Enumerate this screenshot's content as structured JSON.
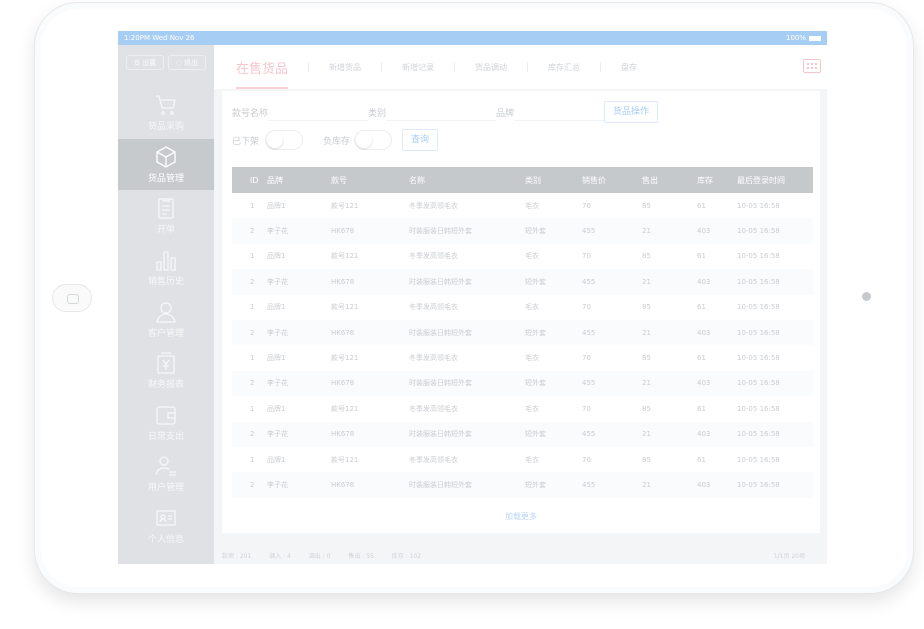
{
  "status": {
    "time": "1:20PM  Wed Nov 26",
    "battery": "100%"
  },
  "sidebar": {
    "settings_label": "设置",
    "logout_label": "退出",
    "items": [
      {
        "label": "货品采购",
        "icon": "cart-icon"
      },
      {
        "label": "货品管理",
        "icon": "box-icon"
      },
      {
        "label": "开单",
        "icon": "clipboard-icon"
      },
      {
        "label": "销售历史",
        "icon": "bar-chart-icon"
      },
      {
        "label": "客户管理",
        "icon": "customer-icon"
      },
      {
        "label": "财务报表",
        "icon": "finance-icon"
      },
      {
        "label": "日常支出",
        "icon": "wallet-icon"
      },
      {
        "label": "用户管理",
        "icon": "user-manage-icon"
      },
      {
        "label": "个人信息",
        "icon": "id-card-icon"
      }
    ]
  },
  "header": {
    "tabs": [
      "在售货品",
      "新增货品",
      "新增记录",
      "货品调动",
      "库存汇总",
      "盘存"
    ]
  },
  "filters": {
    "item_no_label": "款号名称",
    "category_label": "类别",
    "brand_label": "品牌",
    "goods_op_label": "货品操作",
    "off_shelf_label": "已下架",
    "negative_stock_label": "负库存",
    "query_label": "查询"
  },
  "table": {
    "columns": [
      "ID",
      "品牌",
      "款号",
      "名称",
      "类别",
      "销售价",
      "售出",
      "库存",
      "最后登录时间"
    ],
    "rows": [
      [
        "1",
        "品牌1",
        "款号121",
        "冬季发高领毛衣",
        "毛衣",
        "70",
        "85",
        "61",
        "10-05 16:58"
      ],
      [
        "2",
        "李子花",
        "HK678",
        "时装服装日韩短外套",
        "短外套",
        "455",
        "21",
        "403",
        "10-05 16:58"
      ],
      [
        "1",
        "品牌1",
        "款号121",
        "冬季发高领毛衣",
        "毛衣",
        "70",
        "85",
        "61",
        "10-05 16:58"
      ],
      [
        "2",
        "李子花",
        "HK678",
        "时装服装日韩短外套",
        "短外套",
        "455",
        "21",
        "403",
        "10-05 16:58"
      ],
      [
        "1",
        "品牌1",
        "款号121",
        "冬季发高领毛衣",
        "毛衣",
        "70",
        "85",
        "61",
        "10-05 16:58"
      ],
      [
        "2",
        "李子花",
        "HK678",
        "时装服装日韩短外套",
        "短外套",
        "455",
        "21",
        "403",
        "10-05 16:58"
      ],
      [
        "1",
        "品牌1",
        "款号121",
        "冬季发高领毛衣",
        "毛衣",
        "70",
        "85",
        "61",
        "10-05 16:58"
      ],
      [
        "2",
        "李子花",
        "HK678",
        "时装服装日韩短外套",
        "短外套",
        "455",
        "21",
        "403",
        "10-05 16:58"
      ],
      [
        "1",
        "品牌1",
        "款号121",
        "冬季发高领毛衣",
        "毛衣",
        "70",
        "85",
        "61",
        "10-05 16:58"
      ],
      [
        "2",
        "李子花",
        "HK678",
        "时装服装日韩短外套",
        "短外套",
        "455",
        "21",
        "403",
        "10-05 16:58"
      ],
      [
        "1",
        "品牌1",
        "款号121",
        "冬季发高领毛衣",
        "毛衣",
        "70",
        "85",
        "61",
        "10-05 16:58"
      ],
      [
        "2",
        "李子花",
        "HK678",
        "时装服装日韩短外套",
        "短外套",
        "455",
        "21",
        "403",
        "10-05 16:58"
      ]
    ],
    "load_more": "加载更多"
  },
  "footer": {
    "stats": [
      "款项 : 201",
      "调入 : 4",
      "调出 : 0",
      "售出 : 55",
      "库存 : 102"
    ],
    "pagination": "1/1页  20项"
  },
  "colors": {
    "accent_pink": "#f5c6cc",
    "accent_blue": "#a9cdf3",
    "sidebar_bg": "#dfe1e4",
    "status_bar": "#a6cdf3"
  }
}
